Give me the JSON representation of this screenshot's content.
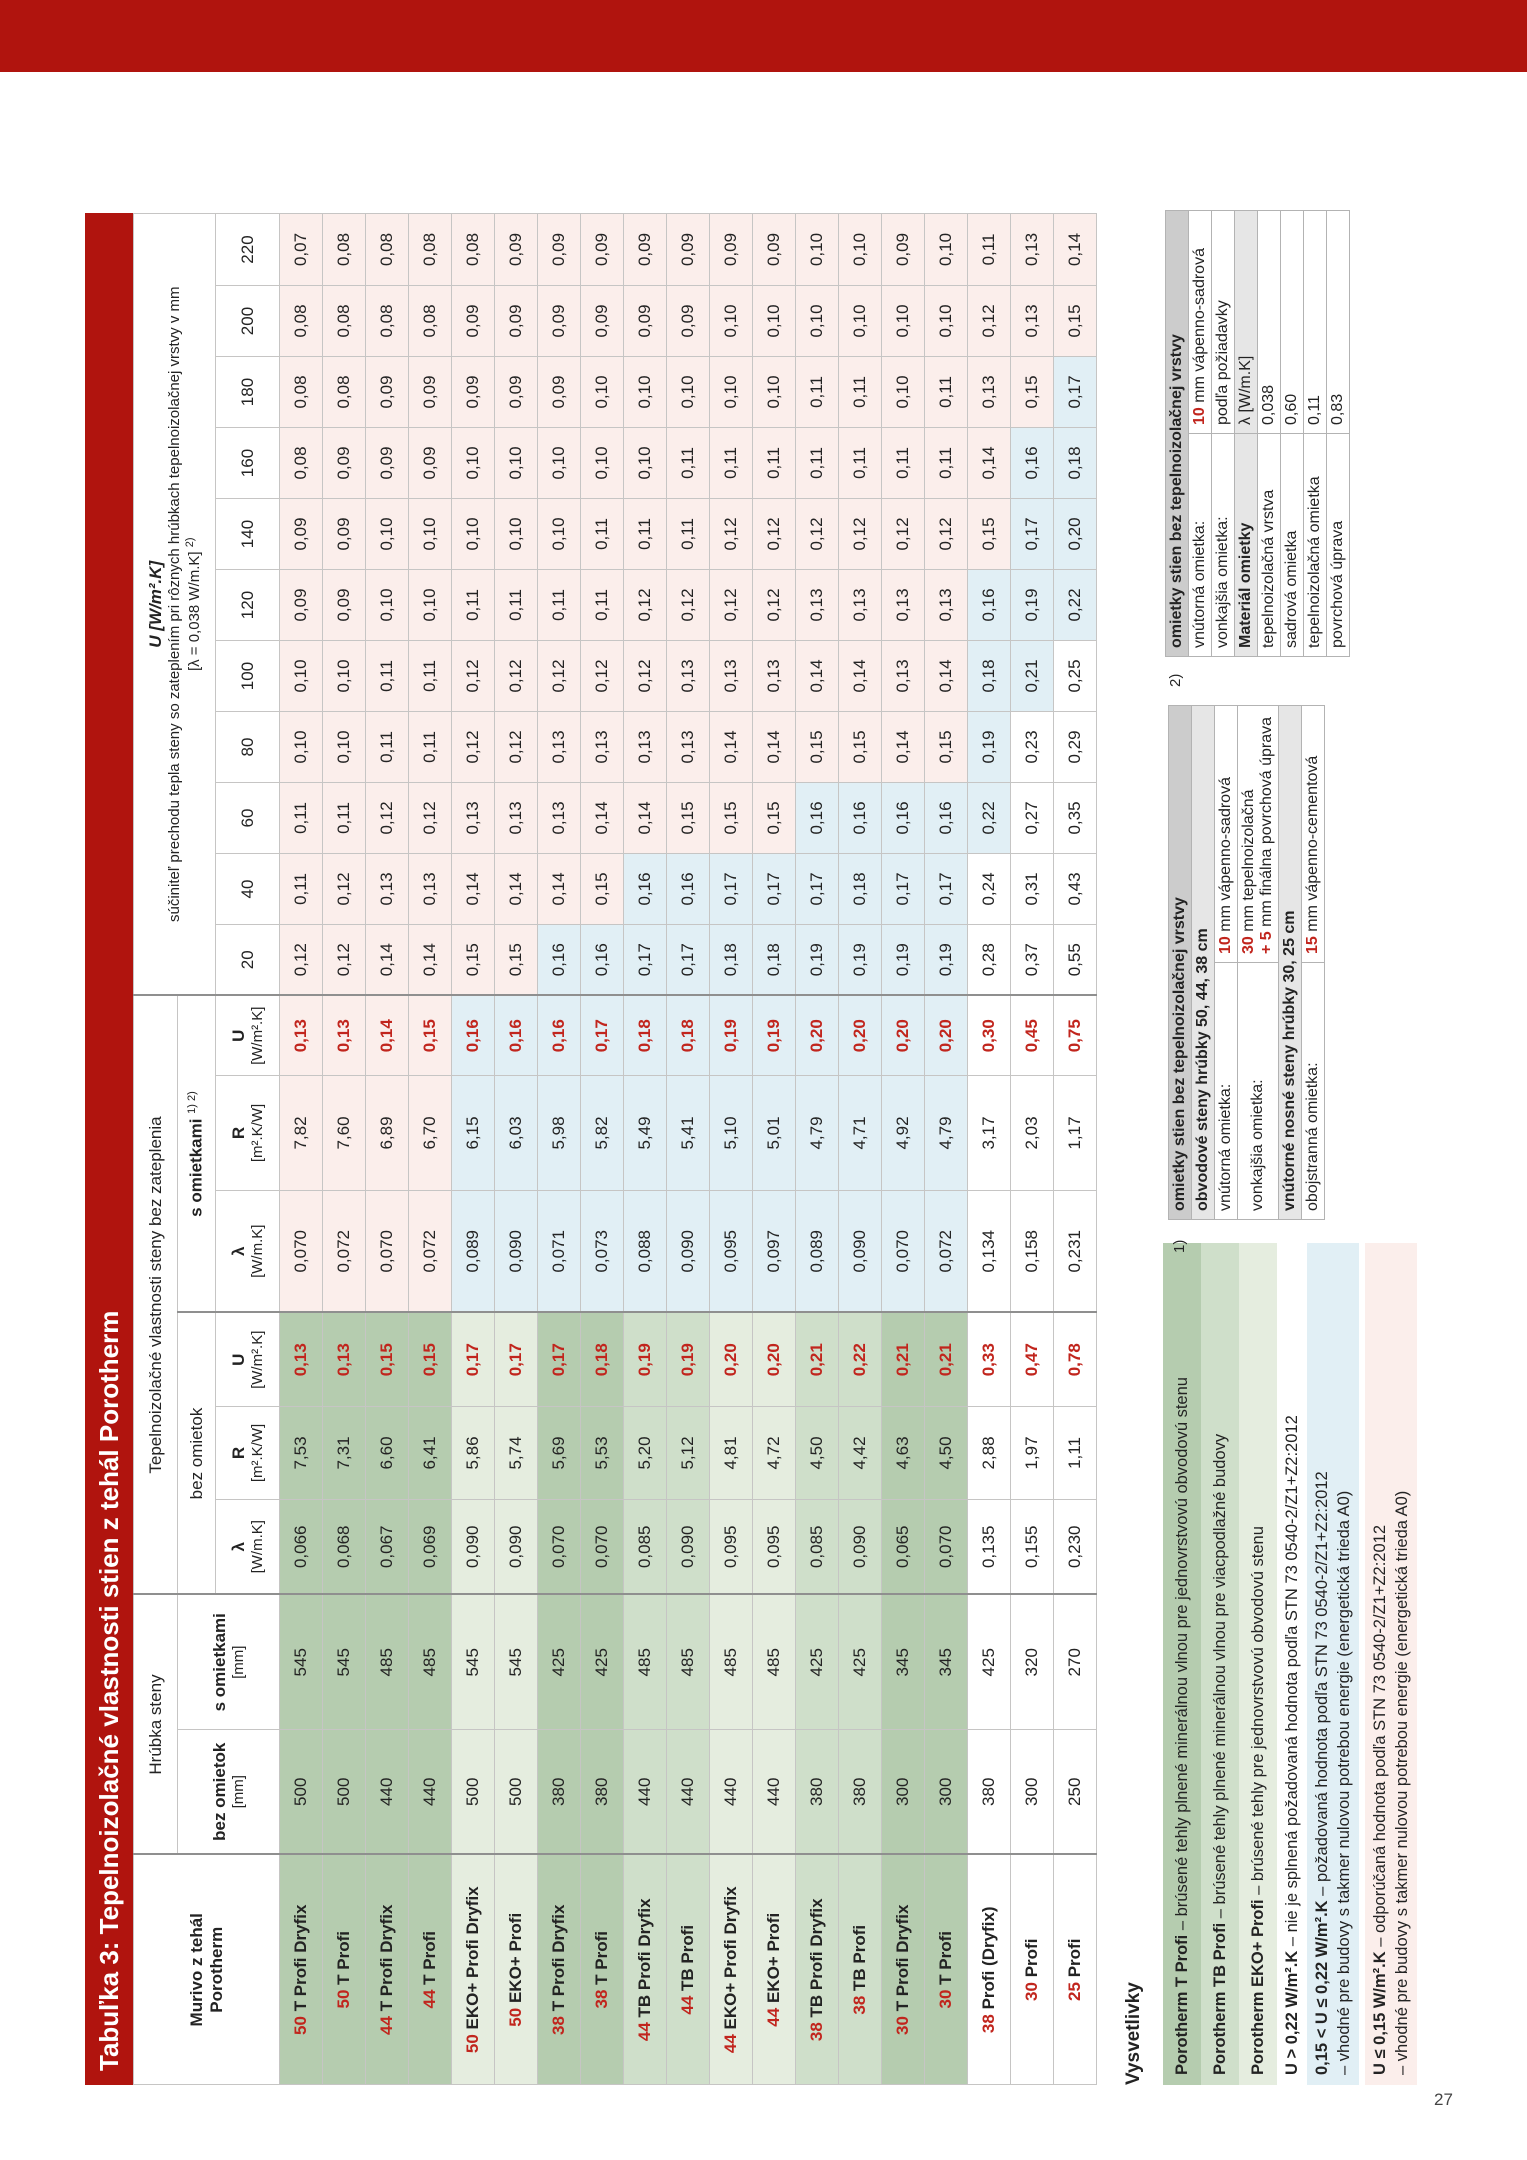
{
  "title": "Tabuľka 3: Tepelnoizolačné vlastnosti stien z tehál Porotherm",
  "page_number": "27",
  "colors": {
    "brand_red": "#b0140e",
    "value_red": "#c1251d",
    "cat_recommended_pink": "#fbeeeb",
    "cat_required_blue": "#e1eff5",
    "family_T_green": "#b5ccaf",
    "family_TB_green": "#cfdfca",
    "family_EKO_green": "#e5eddf"
  },
  "table": {
    "header": {
      "murivo": [
        "Murivo z tehál",
        "Porotherm"
      ],
      "hrubka": "Hrúbka steny",
      "tepelno": "Tepelnoizolačné vlastnosti steny bez zateplenia",
      "bez_omietok_mm": [
        "bez omietok",
        "[mm]"
      ],
      "s_omietkami_mm": [
        "s omietkami",
        "[mm]"
      ],
      "bez_omietok": "bez omietok",
      "s_omietkami": "s omietkami",
      "s_omietkami_sup": "1) 2)",
      "lambda": [
        "λ",
        "[W/m.K]"
      ],
      "r": [
        "R",
        "[m².K/W]"
      ],
      "u": [
        "U",
        "[W/m².K]"
      ],
      "u_zateplenie_line1": "U [W/m².K]",
      "u_zateplenie_line2": "súčiniteľ prechodu tepla steny so zateplením pri rôznych hrúbkach tepelnoizolačnej vrstvy v mm",
      "u_zateplenie_line3": "[λ = 0,038 W/m.K]",
      "u_zateplenie_sup": "2)",
      "thicknesses": [
        "20",
        "40",
        "60",
        "80",
        "100",
        "120",
        "140",
        "160",
        "180",
        "200",
        "220"
      ]
    },
    "rows": [
      {
        "num": "50",
        "name": "T Profi Dryfix",
        "family": "T",
        "mm_bez": "500",
        "mm_s": "545",
        "lam_bez": "0,066",
        "r_bez": "7,53",
        "u_bez": "0,13",
        "lam_s": "0,070",
        "r_s": "7,82",
        "u_s": "0,13",
        "u_ins": [
          "0,12",
          "0,11",
          "0,11",
          "0,10",
          "0,10",
          "0,09",
          "0,09",
          "0,08",
          "0,08",
          "0,08",
          "0,07"
        ]
      },
      {
        "num": "50",
        "name": "T Profi",
        "family": "T",
        "mm_bez": "500",
        "mm_s": "545",
        "lam_bez": "0,068",
        "r_bez": "7,31",
        "u_bez": "0,13",
        "lam_s": "0,072",
        "r_s": "7,60",
        "u_s": "0,13",
        "u_ins": [
          "0,12",
          "0,12",
          "0,11",
          "0,10",
          "0,10",
          "0,09",
          "0,09",
          "0,09",
          "0,08",
          "0,08",
          "0,08"
        ]
      },
      {
        "num": "44",
        "name": "T Profi Dryfix",
        "family": "T",
        "mm_bez": "440",
        "mm_s": "485",
        "lam_bez": "0,067",
        "r_bez": "6,60",
        "u_bez": "0,15",
        "lam_s": "0,070",
        "r_s": "6,89",
        "u_s": "0,14",
        "u_ins": [
          "0,14",
          "0,13",
          "0,12",
          "0,11",
          "0,11",
          "0,10",
          "0,10",
          "0,09",
          "0,09",
          "0,08",
          "0,08"
        ]
      },
      {
        "num": "44",
        "name": "T Profi",
        "family": "T",
        "mm_bez": "440",
        "mm_s": "485",
        "lam_bez": "0,069",
        "r_bez": "6,41",
        "u_bez": "0,15",
        "lam_s": "0,072",
        "r_s": "6,70",
        "u_s": "0,15",
        "u_ins": [
          "0,14",
          "0,13",
          "0,12",
          "0,11",
          "0,11",
          "0,10",
          "0,10",
          "0,09",
          "0,09",
          "0,08",
          "0,08"
        ]
      },
      {
        "num": "50",
        "name": "EKO+ Profi Dryfix",
        "family": "EKO",
        "mm_bez": "500",
        "mm_s": "545",
        "lam_bez": "0,090",
        "r_bez": "5,86",
        "u_bez": "0,17",
        "lam_s": "0,089",
        "r_s": "6,15",
        "u_s": "0,16",
        "u_ins": [
          "0,15",
          "0,14",
          "0,13",
          "0,12",
          "0,12",
          "0,11",
          "0,10",
          "0,10",
          "0,09",
          "0,09",
          "0,08"
        ]
      },
      {
        "num": "50",
        "name": "EKO+ Profi",
        "family": "EKO",
        "mm_bez": "500",
        "mm_s": "545",
        "lam_bez": "0,090",
        "r_bez": "5,74",
        "u_bez": "0,17",
        "lam_s": "0,090",
        "r_s": "6,03",
        "u_s": "0,16",
        "u_ins": [
          "0,15",
          "0,14",
          "0,13",
          "0,12",
          "0,12",
          "0,11",
          "0,10",
          "0,10",
          "0,09",
          "0,09",
          "0,09"
        ]
      },
      {
        "num": "38",
        "name": "T Profi Dryfix",
        "family": "T",
        "mm_bez": "380",
        "mm_s": "425",
        "lam_bez": "0,070",
        "r_bez": "5,69",
        "u_bez": "0,17",
        "lam_s": "0,071",
        "r_s": "5,98",
        "u_s": "0,16",
        "u_ins": [
          "0,16",
          "0,14",
          "0,13",
          "0,13",
          "0,12",
          "0,11",
          "0,10",
          "0,10",
          "0,09",
          "0,09",
          "0,09"
        ]
      },
      {
        "num": "38",
        "name": "T Profi",
        "family": "T",
        "mm_bez": "380",
        "mm_s": "425",
        "lam_bez": "0,070",
        "r_bez": "5,53",
        "u_bez": "0,18",
        "lam_s": "0,073",
        "r_s": "5,82",
        "u_s": "0,17",
        "u_ins": [
          "0,16",
          "0,15",
          "0,14",
          "0,13",
          "0,12",
          "0,11",
          "0,11",
          "0,10",
          "0,10",
          "0,09",
          "0,09"
        ]
      },
      {
        "num": "44",
        "name": "TB Profi Dryfix",
        "family": "TB",
        "mm_bez": "440",
        "mm_s": "485",
        "lam_bez": "0,085",
        "r_bez": "5,20",
        "u_bez": "0,19",
        "lam_s": "0,088",
        "r_s": "5,49",
        "u_s": "0,18",
        "u_ins": [
          "0,17",
          "0,16",
          "0,14",
          "0,13",
          "0,12",
          "0,12",
          "0,11",
          "0,10",
          "0,10",
          "0,09",
          "0,09"
        ]
      },
      {
        "num": "44",
        "name": "TB Profi",
        "family": "TB",
        "mm_bez": "440",
        "mm_s": "485",
        "lam_bez": "0,090",
        "r_bez": "5,12",
        "u_bez": "0,19",
        "lam_s": "0,090",
        "r_s": "5,41",
        "u_s": "0,18",
        "u_ins": [
          "0,17",
          "0,16",
          "0,15",
          "0,13",
          "0,13",
          "0,12",
          "0,11",
          "0,11",
          "0,10",
          "0,09",
          "0,09"
        ]
      },
      {
        "num": "44",
        "name": "EKO+ Profi Dryfix",
        "family": "EKO",
        "mm_bez": "440",
        "mm_s": "485",
        "lam_bez": "0,095",
        "r_bez": "4,81",
        "u_bez": "0,20",
        "lam_s": "0,095",
        "r_s": "5,10",
        "u_s": "0,19",
        "u_ins": [
          "0,18",
          "0,17",
          "0,15",
          "0,14",
          "0,13",
          "0,12",
          "0,12",
          "0,11",
          "0,10",
          "0,10",
          "0,09"
        ]
      },
      {
        "num": "44",
        "name": "EKO+ Profi",
        "family": "EKO",
        "mm_bez": "440",
        "mm_s": "485",
        "lam_bez": "0,095",
        "r_bez": "4,72",
        "u_bez": "0,20",
        "lam_s": "0,097",
        "r_s": "5,01",
        "u_s": "0,19",
        "u_ins": [
          "0,18",
          "0,17",
          "0,15",
          "0,14",
          "0,13",
          "0,12",
          "0,12",
          "0,11",
          "0,10",
          "0,10",
          "0,09"
        ]
      },
      {
        "num": "38",
        "name": "TB Profi Dryfix",
        "family": "TB",
        "mm_bez": "380",
        "mm_s": "425",
        "lam_bez": "0,085",
        "r_bez": "4,50",
        "u_bez": "0,21",
        "lam_s": "0,089",
        "r_s": "4,79",
        "u_s": "0,20",
        "u_ins": [
          "0,19",
          "0,17",
          "0,16",
          "0,15",
          "0,14",
          "0,13",
          "0,12",
          "0,11",
          "0,11",
          "0,10",
          "0,10"
        ]
      },
      {
        "num": "38",
        "name": "TB Profi",
        "family": "TB",
        "mm_bez": "380",
        "mm_s": "425",
        "lam_bez": "0,090",
        "r_bez": "4,42",
        "u_bez": "0,22",
        "lam_s": "0,090",
        "r_s": "4,71",
        "u_s": "0,20",
        "u_ins": [
          "0,19",
          "0,18",
          "0,16",
          "0,15",
          "0,14",
          "0,13",
          "0,12",
          "0,11",
          "0,11",
          "0,10",
          "0,10"
        ]
      },
      {
        "num": "30",
        "name": "T Profi Dryfix",
        "family": "T",
        "mm_bez": "300",
        "mm_s": "345",
        "lam_bez": "0,065",
        "r_bez": "4,63",
        "u_bez": "0,21",
        "lam_s": "0,070",
        "r_s": "4,92",
        "u_s": "0,20",
        "u_ins": [
          "0,19",
          "0,17",
          "0,16",
          "0,14",
          "0,13",
          "0,13",
          "0,12",
          "0,11",
          "0,10",
          "0,10",
          "0,09"
        ]
      },
      {
        "num": "30",
        "name": "T Profi",
        "family": "T",
        "mm_bez": "300",
        "mm_s": "345",
        "lam_bez": "0,070",
        "r_bez": "4,50",
        "u_bez": "0,21",
        "lam_s": "0,072",
        "r_s": "4,79",
        "u_s": "0,20",
        "u_ins": [
          "0,19",
          "0,17",
          "0,16",
          "0,15",
          "0,14",
          "0,13",
          "0,12",
          "0,11",
          "0,11",
          "0,10",
          "0,10"
        ]
      },
      {
        "num": "38",
        "name": "Profi (Dryfix)",
        "family": "NONE",
        "mm_bez": "380",
        "mm_s": "425",
        "lam_bez": "0,135",
        "r_bez": "2,88",
        "u_bez": "0,33",
        "lam_s": "0,134",
        "r_s": "3,17",
        "u_s": "0,30",
        "u_ins": [
          "0,28",
          "0,24",
          "0,22",
          "0,19",
          "0,18",
          "0,16",
          "0,15",
          "0,14",
          "0,13",
          "0,12",
          "0,11"
        ]
      },
      {
        "num": "30",
        "name": "Profi",
        "family": "NONE",
        "mm_bez": "300",
        "mm_s": "320",
        "lam_bez": "0,155",
        "r_bez": "1,97",
        "u_bez": "0,47",
        "lam_s": "0,158",
        "r_s": "2,03",
        "u_s": "0,45",
        "u_ins": [
          "0,37",
          "0,31",
          "0,27",
          "0,23",
          "0,21",
          "0,19",
          "0,17",
          "0,16",
          "0,15",
          "0,13",
          "0,13"
        ]
      },
      {
        "num": "25",
        "name": "Profi",
        "family": "NONE",
        "mm_bez": "250",
        "mm_s": "270",
        "lam_bez": "0,230",
        "r_bez": "1,11",
        "u_bez": "0,78",
        "lam_s": "0,231",
        "r_s": "1,17",
        "u_s": "0,75",
        "u_ins": [
          "0,55",
          "0,43",
          "0,35",
          "0,29",
          "0,25",
          "0,22",
          "0,20",
          "0,18",
          "0,17",
          "0,15",
          "0,14"
        ]
      }
    ]
  },
  "legend": {
    "heading": "Vysvetlivky",
    "items": [
      {
        "style": "green1",
        "bold": "Porotherm T Profi",
        "text": " – brúsené tehly plnené minerálnou vlnou pre jednovrstvovú obvodovú stenu"
      },
      {
        "style": "green2",
        "bold": "Porotherm TB Profi",
        "text": " – brúsené tehly plnené minerálnou vlnou pre viacpodlažné budovy"
      },
      {
        "style": "green3",
        "bold": "Porotherm EKO+ Profi",
        "text": " – brúsené tehly pre jednovrstvovú obvodovú stenu"
      },
      {
        "style": "white",
        "bold": "U > 0,22 W/m².K",
        "text": " – nie je splnená požadovaná hodnota podľa STN 73 0540-2/Z1+Z2:2012"
      },
      {
        "style": "blue",
        "bold": "0,15 < U ≤ 0,22 W/m².K",
        "text": " – požadovaná hodnota podľa STN 73 0540-2/Z1+Z2:2012",
        "text2": "– vhodné pre budovy s takmer nulovou potrebou energie (energetická trieda A0)"
      },
      {
        "style": "pink",
        "bold": "U ≤ 0,15 W/m².K",
        "text": " – odporúčaná hodnota podľa STN 73 0540-2/Z1+Z2:2012",
        "text2": "– vhodné pre budovy s takmer nulovou potrebou energie (energetická trieda A0)"
      }
    ]
  },
  "boxes": [
    {
      "label": "1)",
      "header": "omietky stien bez tepelnoizolačnej vrstvy",
      "rows": [
        {
          "type": "sub",
          "text": "obvodové steny hrúbky 50, 44, 38 cm"
        },
        {
          "type": "row",
          "label": "vnútorná omietka:",
          "value": [
            {
              "red": "10"
            },
            {
              "t": " mm vápenno-sadrová"
            }
          ]
        },
        {
          "type": "row",
          "label": "vonkajšia omietka:",
          "value": [
            {
              "red": "30"
            },
            {
              "t": " mm tepelnoizolačná"
            },
            {
              "br": true
            },
            {
              "red": "+ 5"
            },
            {
              "t": " mm finálna povrchová úprava"
            }
          ]
        },
        {
          "type": "sub",
          "text": "vnútorné nosné steny hrúbky 30, 25 cm"
        },
        {
          "type": "row",
          "label": "obojstranná omietka:",
          "value": [
            {
              "red": "15"
            },
            {
              "t": " mm vápenno-cementová"
            }
          ]
        }
      ]
    },
    {
      "label": "2)",
      "header": "omietky stien bez tepelnoizolačnej vrstvy",
      "rows": [
        {
          "type": "row",
          "label": "vnútorná omietka:",
          "value": [
            {
              "red": "10"
            },
            {
              "t": " mm vápenno-sadrová"
            }
          ]
        },
        {
          "type": "row",
          "label": "vonkajšia omietka:",
          "value": [
            {
              "t": "podľa požiadavky"
            }
          ]
        },
        {
          "type": "sub2",
          "label": "Materiál omietky",
          "value": "λ [W/m.K]"
        },
        {
          "type": "row",
          "label": "tepelnoizolačná vrstva",
          "value": [
            {
              "t": "0,038"
            }
          ]
        },
        {
          "type": "row",
          "label": "sadrová omietka",
          "value": [
            {
              "t": "0,60"
            }
          ]
        },
        {
          "type": "row",
          "label": "tepelnoizolačná omietka",
          "value": [
            {
              "t": "0,11"
            }
          ]
        },
        {
          "type": "row",
          "label": "povrchová úprava",
          "value": [
            {
              "t": "0,83"
            }
          ]
        }
      ]
    }
  ]
}
